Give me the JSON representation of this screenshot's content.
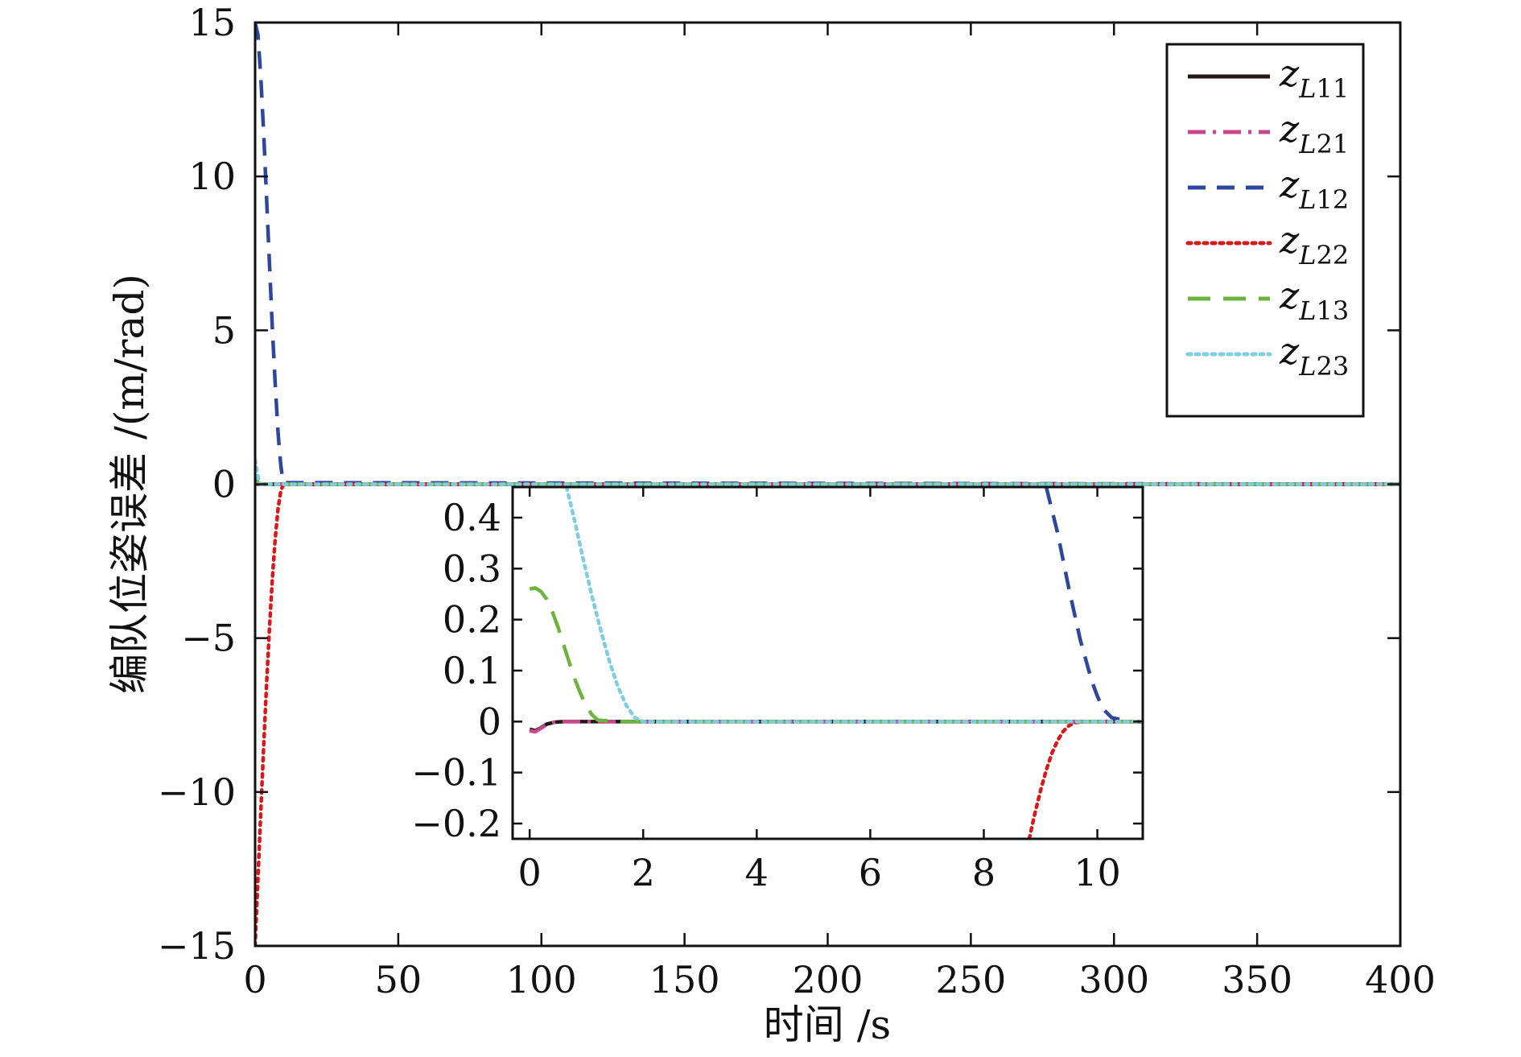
{
  "chart_data": [
    {
      "type": "line",
      "role": "main",
      "title": "",
      "xlabel": "时间 /s",
      "ylabel": "编队位姿误差 /(m/rad)",
      "xlim": [
        0,
        400
      ],
      "ylim": [
        -15,
        15
      ],
      "xticks": [
        0,
        50,
        100,
        150,
        200,
        250,
        300,
        350,
        400
      ],
      "yticks": [
        -15,
        -10,
        -5,
        0,
        5,
        10,
        15
      ],
      "xtick_labels": [
        "0",
        "50",
        "100",
        "150",
        "200",
        "250",
        "300",
        "350",
        "400"
      ],
      "ytick_labels": [
        "−15",
        "−10",
        "−5",
        "0",
        "5",
        "10",
        "15"
      ],
      "grid": false,
      "legend_position": "top-right",
      "series": [
        {
          "name": "zL11",
          "label_base": "z",
          "label_sub": "L11",
          "color": "#231815",
          "dash": "solid",
          "x": [
            0,
            2,
            5,
            10,
            400
          ],
          "y": [
            0,
            0,
            0,
            0,
            0
          ]
        },
        {
          "name": "zL21",
          "label_base": "z",
          "label_sub": "L21",
          "color": "#c8488c",
          "dash": "dashdot",
          "x": [
            0,
            2,
            5,
            10,
            400
          ],
          "y": [
            0,
            0,
            0,
            0,
            0
          ]
        },
        {
          "name": "zL12",
          "label_base": "z",
          "label_sub": "L12",
          "color": "#2e479c",
          "dash": "dashed",
          "x": [
            0,
            1,
            2,
            3,
            4,
            5,
            6,
            7,
            8,
            8.5,
            9,
            9.5,
            10,
            400
          ],
          "y": [
            15,
            14.6,
            13.2,
            11.4,
            9.3,
            7.2,
            5.1,
            3.3,
            1.7,
            1.1,
            0.6,
            0.25,
            0.05,
            0
          ]
        },
        {
          "name": "zL22",
          "label_base": "z",
          "label_sub": "L22",
          "color": "#d7191c",
          "dash": "dotted",
          "x": [
            0,
            1,
            2,
            3,
            4,
            5,
            6,
            7,
            8,
            9,
            10,
            400
          ],
          "y": [
            -15,
            -12.8,
            -10.6,
            -8.5,
            -6.5,
            -4.7,
            -3.1,
            -1.8,
            -0.8,
            -0.2,
            0,
            0
          ]
        },
        {
          "name": "zL13",
          "label_base": "z",
          "label_sub": "L13",
          "color": "#6db33f",
          "dash": "longdash",
          "x": [
            0,
            1.2,
            2,
            400
          ],
          "y": [
            0.26,
            0.02,
            0,
            0
          ]
        },
        {
          "name": "zL23",
          "label_base": "z",
          "label_sub": "L23",
          "color": "#7ecde0",
          "dash": "dotted",
          "x": [
            0,
            0.8,
            1.5,
            2,
            400
          ],
          "y": [
            0.8,
            0.35,
            0.05,
            0,
            0
          ]
        }
      ]
    },
    {
      "type": "line",
      "role": "inset",
      "title": "",
      "xlabel": "",
      "ylabel": "",
      "xlim": [
        -0.3,
        10.8
      ],
      "ylim": [
        -0.23,
        0.46
      ],
      "xticks": [
        0,
        2,
        4,
        6,
        8,
        10
      ],
      "yticks": [
        -0.2,
        -0.1,
        0,
        0.1,
        0.2,
        0.3,
        0.4
      ],
      "xtick_labels": [
        "0",
        "2",
        "4",
        "6",
        "8",
        "10"
      ],
      "ytick_labels": [
        "−0.2",
        "−0.1",
        "0",
        "0.1",
        "0.2",
        "0.3",
        "0.4"
      ],
      "grid": false,
      "series": [
        {
          "name": "zL11",
          "x": [
            0,
            0.1,
            0.2,
            0.3,
            0.45,
            0.6,
            10.8
          ],
          "y": [
            -0.015,
            -0.018,
            -0.012,
            -0.005,
            -0.001,
            0,
            0
          ]
        },
        {
          "name": "zL21",
          "x": [
            0,
            0.1,
            0.2,
            0.3,
            0.45,
            0.6,
            10.8
          ],
          "y": [
            -0.018,
            -0.02,
            -0.013,
            -0.006,
            -0.001,
            0,
            0
          ]
        },
        {
          "name": "zL12",
          "x": [
            9.1,
            9.3,
            9.5,
            9.7,
            9.9,
            10.0,
            10.1,
            10.25,
            10.4,
            10.6,
            10.8
          ],
          "y": [
            0.46,
            0.37,
            0.26,
            0.16,
            0.08,
            0.05,
            0.025,
            0.008,
            0.004,
            0,
            0
          ]
        },
        {
          "name": "zL22",
          "x": [
            8.8,
            8.9,
            9.0,
            9.1,
            9.2,
            9.3,
            9.4,
            9.5,
            9.6,
            9.8,
            10.0,
            10.8
          ],
          "y": [
            -0.23,
            -0.18,
            -0.135,
            -0.095,
            -0.062,
            -0.037,
            -0.019,
            -0.008,
            -0.002,
            0,
            0,
            0
          ]
        },
        {
          "name": "zL13",
          "x": [
            0,
            0.1,
            0.2,
            0.3,
            0.4,
            0.5,
            0.6,
            0.7,
            0.8,
            0.9,
            1.0,
            1.1,
            1.2,
            1.5,
            10.8
          ],
          "y": [
            0.26,
            0.262,
            0.255,
            0.24,
            0.215,
            0.185,
            0.15,
            0.115,
            0.082,
            0.054,
            0.03,
            0.013,
            0.003,
            0,
            0
          ]
        },
        {
          "name": "zL23",
          "x": [
            0.65,
            0.8,
            0.95,
            1.1,
            1.25,
            1.4,
            1.55,
            1.7,
            1.85,
            2.0,
            10.8
          ],
          "y": [
            0.46,
            0.39,
            0.315,
            0.245,
            0.18,
            0.12,
            0.07,
            0.032,
            0.008,
            0,
            0
          ]
        }
      ]
    }
  ]
}
